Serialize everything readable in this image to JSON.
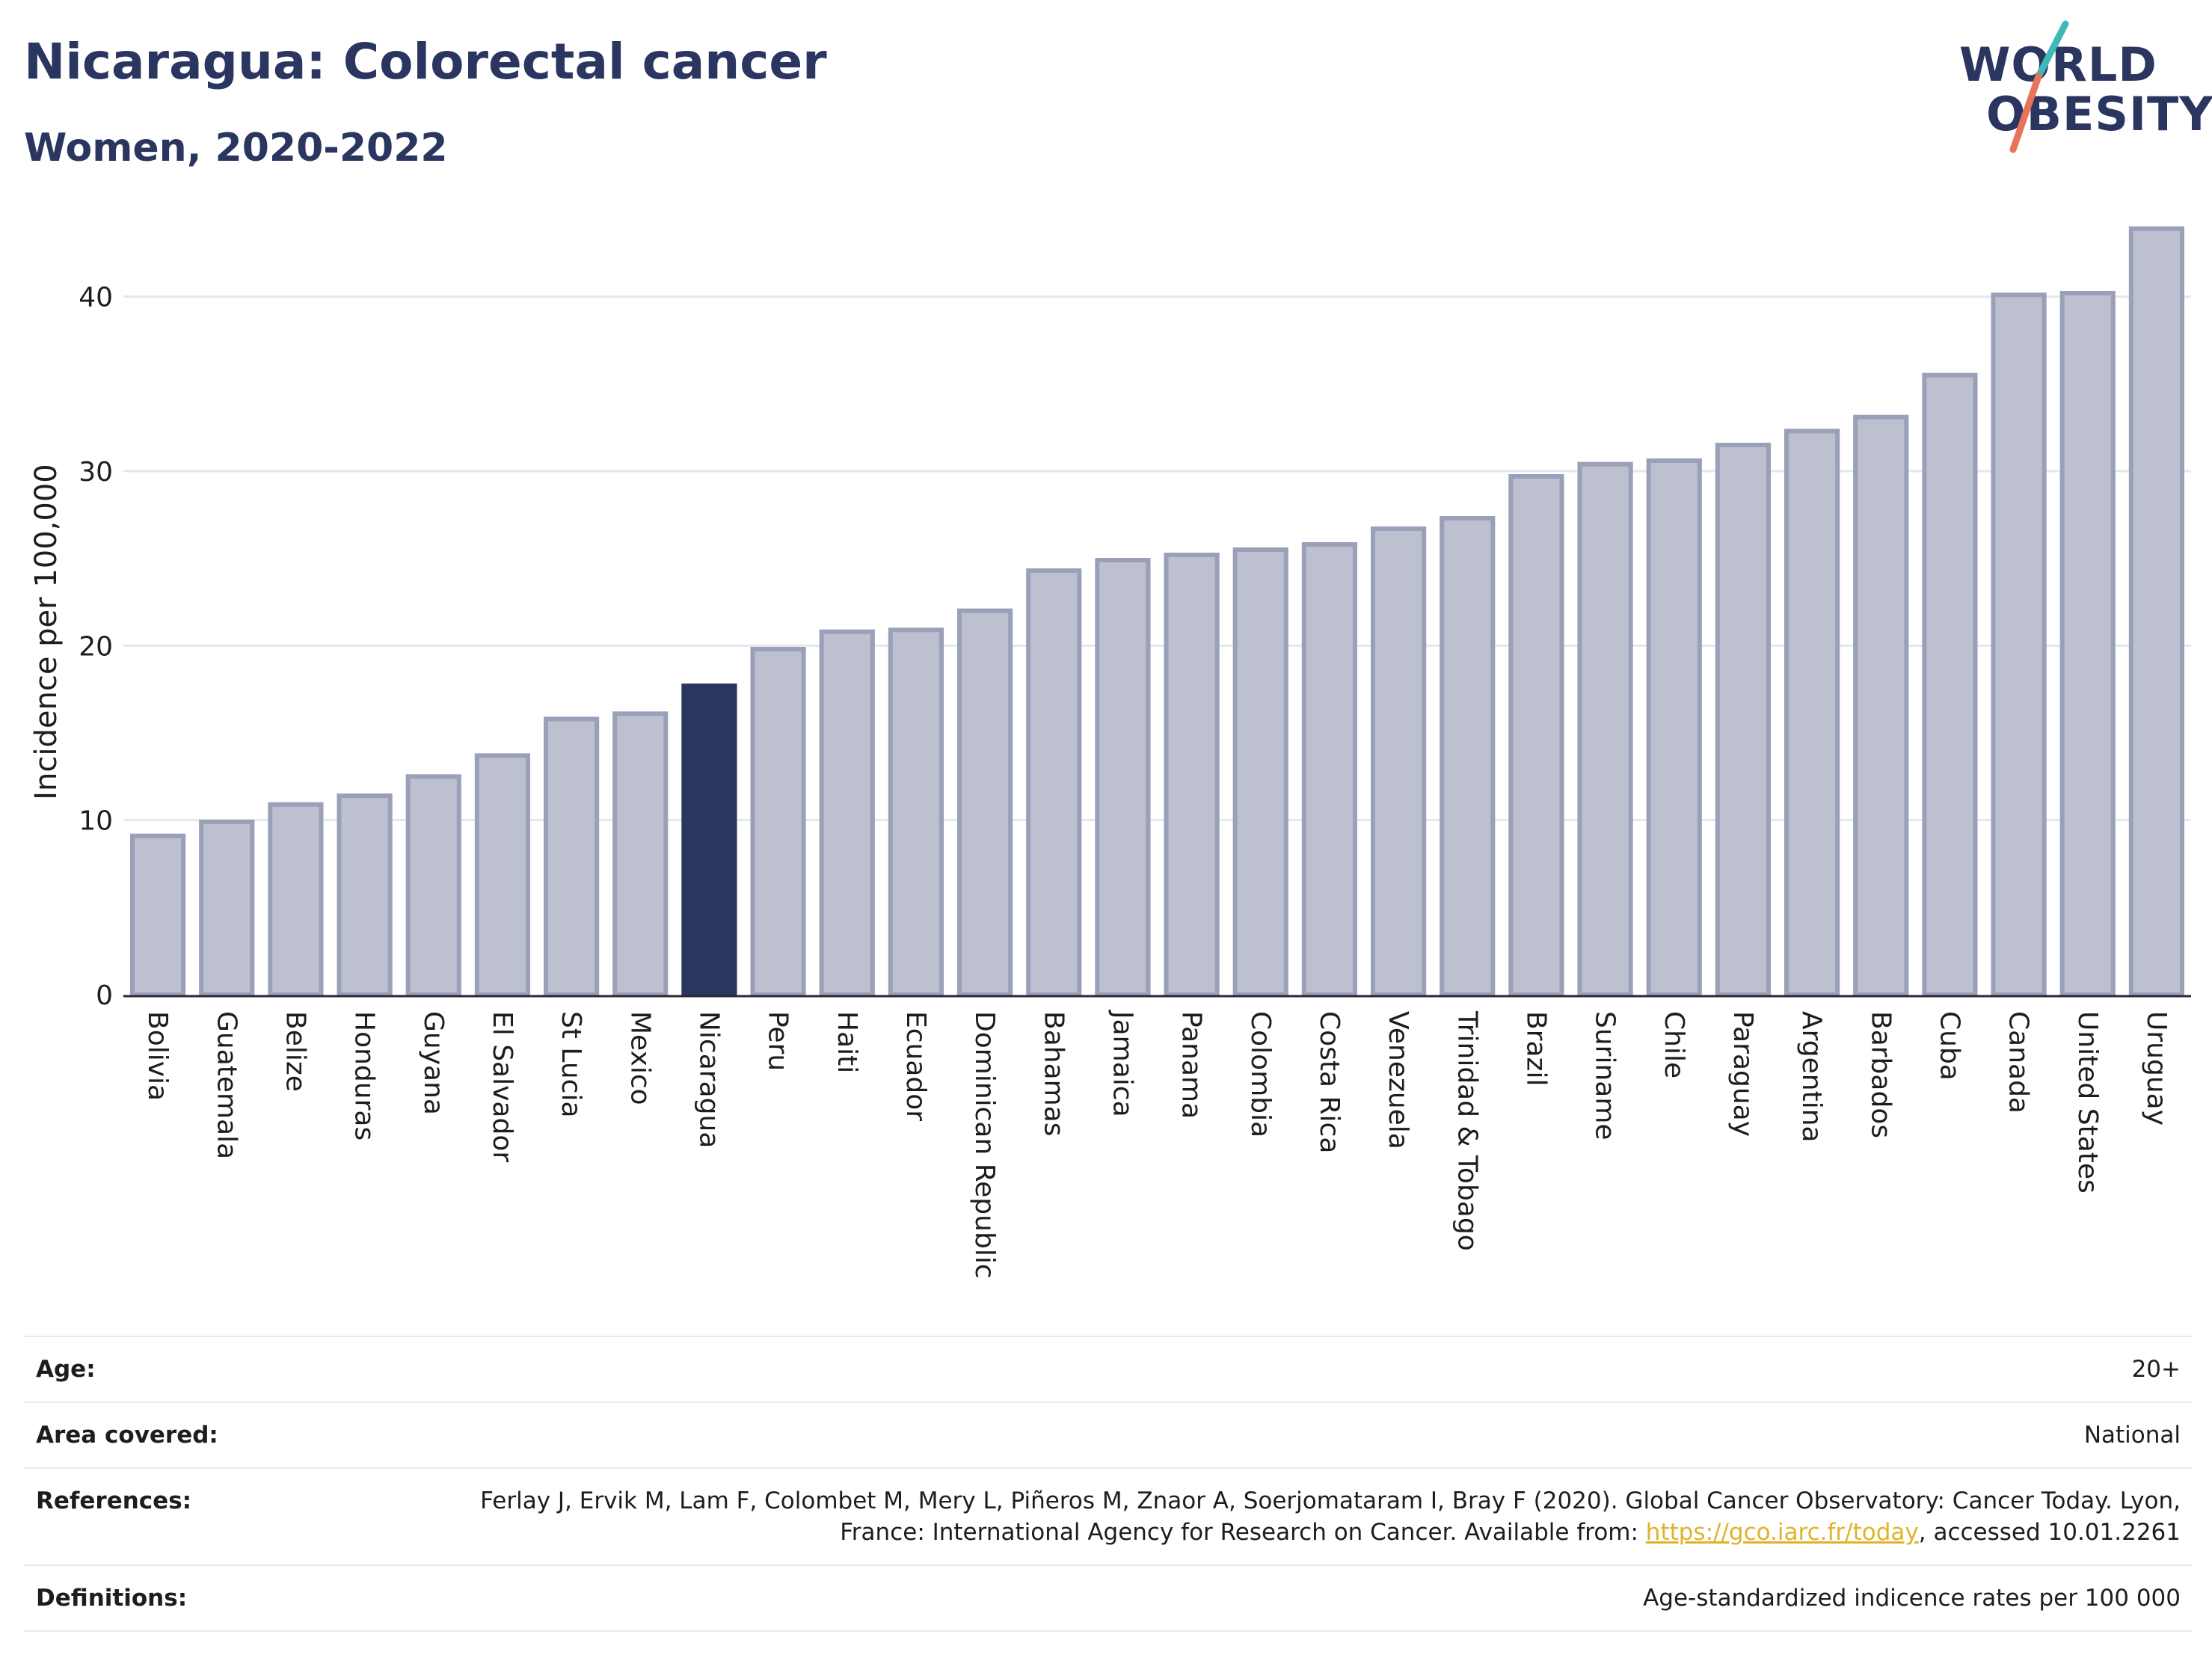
{
  "header": {
    "title": "Nicaragua: Colorectal cancer",
    "subtitle": "Women, 2020-2022"
  },
  "logo": {
    "line1": "WORLD",
    "line2": "OBESITY",
    "accent_colors": [
      "#3fb8b8",
      "#e8735a"
    ]
  },
  "colors": {
    "bar": "#bcc0cf",
    "bar_stroke": "#9aa0b8",
    "highlight": "#2a3560",
    "grid": "#e4e7ee",
    "axis_text": "#1d1d1d"
  },
  "chart_data": {
    "type": "bar",
    "title": "Nicaragua: Colorectal cancer",
    "subtitle": "Women, 2020-2022",
    "ylabel": "Incidence per 100,000",
    "xlabel": "",
    "ylim": [
      0,
      45
    ],
    "yticks": [
      0,
      10,
      20,
      30,
      40
    ],
    "grid": true,
    "highlight": "Nicaragua",
    "categories": [
      "Bolivia",
      "Guatemala",
      "Belize",
      "Honduras",
      "Guyana",
      "El Salvador",
      "St Lucia",
      "Mexico",
      "Nicaragua",
      "Peru",
      "Haiti",
      "Ecuador",
      "Dominican Republic",
      "Bahamas",
      "Jamaica",
      "Panama",
      "Colombia",
      "Costa Rica",
      "Venezuela",
      "Trinidad & Tobago",
      "Brazil",
      "Suriname",
      "Chile",
      "Paraguay",
      "Argentina",
      "Barbados",
      "Cuba",
      "Canada",
      "United States",
      "Uruguay"
    ],
    "values": [
      9.1,
      9.9,
      10.9,
      11.4,
      12.5,
      13.7,
      15.8,
      16.1,
      17.7,
      19.8,
      20.8,
      20.9,
      22.0,
      24.3,
      24.9,
      25.2,
      25.5,
      25.8,
      26.7,
      27.3,
      29.7,
      30.4,
      30.6,
      31.5,
      32.3,
      33.1,
      35.5,
      40.1,
      40.2,
      43.9
    ]
  },
  "meta": {
    "age_label": "Age:",
    "age_value": "20+",
    "area_label": "Area covered:",
    "area_value": "National",
    "ref_label": "References:",
    "ref_text_1": "Ferlay J, Ervik M, Lam F, Colombet M, Mery L, Piñeros M, Znaor A, Soerjomataram I, Bray F (2020). Global Cancer Observatory: Cancer Today. Lyon, France: International Agency for Research on Cancer. Available from: ",
    "ref_link": "https://gco.iarc.fr/today",
    "ref_text_2": ", accessed 10.01.2261",
    "def_label": "Definitions:",
    "def_value": "Age-standardized indicence rates per 100 000"
  }
}
